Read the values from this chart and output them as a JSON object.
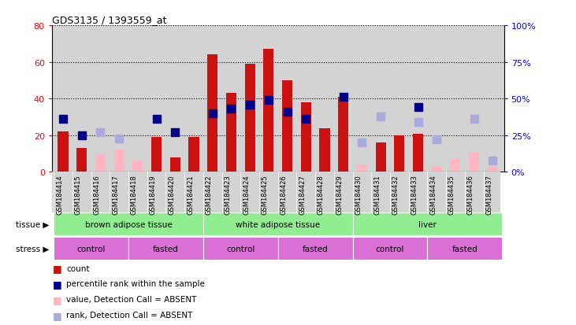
{
  "title": "GDS3135 / 1393559_at",
  "samples": [
    "GSM184414",
    "GSM184415",
    "GSM184416",
    "GSM184417",
    "GSM184418",
    "GSM184419",
    "GSM184420",
    "GSM184421",
    "GSM184422",
    "GSM184423",
    "GSM184424",
    "GSM184425",
    "GSM184426",
    "GSM184427",
    "GSM184428",
    "GSM184429",
    "GSM184430",
    "GSM184431",
    "GSM184432",
    "GSM184433",
    "GSM184434",
    "GSM184435",
    "GSM184436",
    "GSM184437"
  ],
  "count": [
    22,
    13,
    null,
    null,
    null,
    19,
    8,
    19,
    64,
    43,
    59,
    67,
    50,
    38,
    24,
    41,
    null,
    16,
    20,
    21,
    null,
    null,
    null,
    null
  ],
  "count_absent": [
    null,
    null,
    10,
    12,
    6,
    null,
    null,
    null,
    null,
    null,
    null,
    null,
    null,
    null,
    null,
    null,
    4,
    null,
    null,
    null,
    3,
    7,
    11,
    3
  ],
  "rank": [
    36,
    25,
    null,
    null,
    null,
    36,
    27,
    null,
    40,
    43,
    46,
    49,
    41,
    36,
    null,
    51,
    null,
    null,
    null,
    44,
    null,
    null,
    null,
    null
  ],
  "rank_absent": [
    null,
    null,
    27,
    23,
    null,
    null,
    null,
    null,
    null,
    null,
    null,
    null,
    null,
    null,
    null,
    null,
    20,
    38,
    null,
    34,
    22,
    null,
    36,
    8
  ],
  "ylim_left": [
    0,
    80
  ],
  "ylim_right": [
    0,
    100
  ],
  "yticks_left": [
    0,
    20,
    40,
    60,
    80
  ],
  "yticks_right": [
    0,
    25,
    50,
    75,
    100
  ],
  "bar_color_present": "#CC1111",
  "bar_color_absent": "#FFB6C1",
  "dot_color_present": "#00008B",
  "dot_color_absent": "#AAAADD",
  "bar_width": 0.55,
  "dot_size": 45,
  "bg_color": "#D3D3D3",
  "tissue_groups": [
    {
      "label": "brown adipose tissue",
      "start": 0,
      "end": 8,
      "color": "#90EE90"
    },
    {
      "label": "white adipose tissue",
      "start": 8,
      "end": 16,
      "color": "#90EE90"
    },
    {
      "label": "liver",
      "start": 16,
      "end": 24,
      "color": "#90EE90"
    }
  ],
  "stress_groups": [
    {
      "label": "control",
      "start": 0,
      "end": 4,
      "color": "#DA70D6"
    },
    {
      "label": "fasted",
      "start": 4,
      "end": 8,
      "color": "#DA70D6"
    },
    {
      "label": "control",
      "start": 8,
      "end": 12,
      "color": "#DA70D6"
    },
    {
      "label": "fasted",
      "start": 12,
      "end": 16,
      "color": "#DA70D6"
    },
    {
      "label": "control",
      "start": 16,
      "end": 20,
      "color": "#DA70D6"
    },
    {
      "label": "fasted",
      "start": 20,
      "end": 24,
      "color": "#DA70D6"
    }
  ],
  "legend_items": [
    {
      "color": "#CC1111",
      "label": "count"
    },
    {
      "color": "#00008B",
      "label": "percentile rank within the sample"
    },
    {
      "color": "#FFB6C1",
      "label": "value, Detection Call = ABSENT"
    },
    {
      "color": "#AAAADD",
      "label": "rank, Detection Call = ABSENT"
    }
  ]
}
